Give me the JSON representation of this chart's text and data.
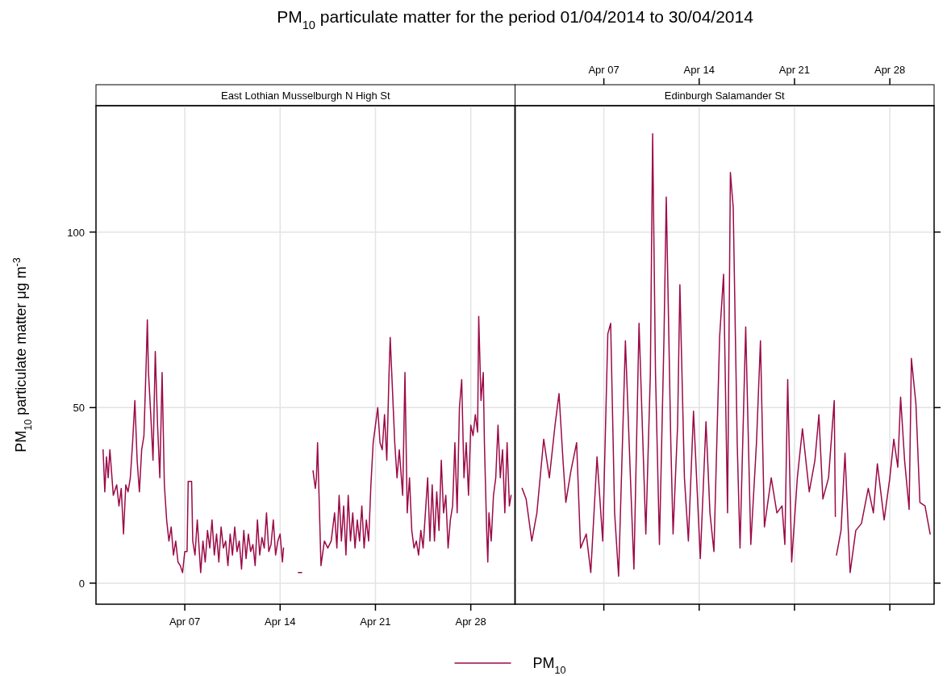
{
  "chart_data": [
    {
      "type": "line",
      "title": "PM$_{10}$ particulate matter  for the period 01/04/2014 to 30/04/2014",
      "subtitle": "East Lothian Musselburgh N High St",
      "ylabel": "PM$_{10}$ particulate matter  μg m$^{-3}$",
      "xlim": [
        "2014-03-31T11:30",
        "2014-05-01T06:00"
      ],
      "xticks": [
        {
          "value": "2014-04-07",
          "label": "Apr 07"
        },
        {
          "value": "2014-04-14",
          "label": "Apr 14"
        },
        {
          "value": "2014-04-21",
          "label": "Apr 21"
        },
        {
          "value": "2014-04-28",
          "label": "Apr 28"
        }
      ],
      "ylim": [
        -6,
        136
      ],
      "yticks": [
        0,
        50,
        100
      ],
      "grid": true,
      "legend": "bottom",
      "series": [
        {
          "name": "PM$_{10}$",
          "color": "#9b0a47",
          "x": [
            "2014-04-01T00:00",
            "2014-04-01T03:00",
            "2014-04-01T06:00",
            "2014-04-01T09:00",
            "2014-04-01T12:00",
            "2014-04-01T18:00",
            "2014-04-02T00:00",
            "2014-04-02T04:00",
            "2014-04-02T08:00",
            "2014-04-02T12:00",
            "2014-04-02T16:00",
            "2014-04-02T20:00",
            "2014-04-03T00:00",
            "2014-04-03T04:00",
            "2014-04-03T08:00",
            "2014-04-03T12:00",
            "2014-04-03T16:00",
            "2014-04-03T20:00",
            "2014-04-04T00:00",
            "2014-04-04T04:00",
            "2014-04-04T06:00",
            "2014-04-04T08:00",
            "2014-04-04T12:00",
            "2014-04-04T16:00",
            "2014-04-04T20:00",
            "2014-04-05T00:00",
            "2014-04-05T04:00",
            "2014-04-05T08:00",
            "2014-04-05T12:00",
            "2014-04-05T16:00",
            "2014-04-05T20:00",
            "2014-04-06T00:00",
            "2014-04-06T04:00",
            "2014-04-06T08:00",
            "2014-04-06T12:00",
            "2014-04-06T16:00",
            "2014-04-06T20:00",
            "2014-04-07T00:00",
            "2014-04-07T04:00",
            "2014-04-07T06:00",
            "2014-04-07T12:00",
            "2014-04-07T14:00",
            "2014-04-07T18:00",
            "2014-04-07T22:00",
            "2014-04-08T04:00",
            "2014-04-08T08:00",
            "2014-04-08T12:00",
            "2014-04-08T16:00",
            "2014-04-08T20:00",
            "2014-04-09T00:00",
            "2014-04-09T04:00",
            "2014-04-09T08:00",
            "2014-04-09T12:00",
            "2014-04-09T16:00",
            "2014-04-09T20:00",
            "2014-04-10T00:00",
            "2014-04-10T04:00",
            "2014-04-10T08:00",
            "2014-04-10T12:00",
            "2014-04-10T16:00",
            "2014-04-10T20:00",
            "2014-04-11T00:00",
            "2014-04-11T04:00",
            "2014-04-11T08:00",
            "2014-04-11T12:00",
            "2014-04-11T16:00",
            "2014-04-11T20:00",
            "2014-04-12T00:00",
            "2014-04-12T04:00",
            "2014-04-12T08:00",
            "2014-04-12T12:00",
            "2014-04-12T16:00",
            "2014-04-12T20:00",
            "2014-04-13T00:00",
            "2014-04-13T04:00",
            "2014-04-13T08:00",
            "2014-04-13T12:00",
            "2014-04-13T16:00",
            "2014-04-13T20:00",
            "2014-04-14T00:00",
            "2014-04-14T04:00",
            "2014-04-14T06:00",
            "2014-04-14T12:00",
            "2014-04-15T08:00",
            "2014-04-15T14:00",
            "2014-04-15T16:00",
            "2014-04-16T10:00",
            "2014-04-16T14:00",
            "2014-04-16T16:00",
            "2014-04-16T18:00",
            "2014-04-17T00:00",
            "2014-04-17T06:00",
            "2014-04-17T12:00",
            "2014-04-17T18:00",
            "2014-04-18T00:00",
            "2014-04-18T04:00",
            "2014-04-18T08:00",
            "2014-04-18T12:00",
            "2014-04-18T16:00",
            "2014-04-18T20:00",
            "2014-04-19T00:00",
            "2014-04-19T04:00",
            "2014-04-19T08:00",
            "2014-04-19T12:00",
            "2014-04-19T16:00",
            "2014-04-19T20:00",
            "2014-04-20T00:00",
            "2014-04-20T04:00",
            "2014-04-20T08:00",
            "2014-04-20T12:00",
            "2014-04-20T16:00",
            "2014-04-20T20:00",
            "2014-04-21T00:00",
            "2014-04-21T04:00",
            "2014-04-21T08:00",
            "2014-04-21T12:00",
            "2014-04-21T16:00",
            "2014-04-21T20:00",
            "2014-04-22T00:00",
            "2014-04-22T02:00",
            "2014-04-22T06:00",
            "2014-04-22T10:00",
            "2014-04-22T14:00",
            "2014-04-22T18:00",
            "2014-04-23T00:00",
            "2014-04-23T04:00",
            "2014-04-23T08:00",
            "2014-04-23T12:00",
            "2014-04-23T16:00",
            "2014-04-23T20:00",
            "2014-04-24T00:00",
            "2014-04-24T04:00",
            "2014-04-24T08:00",
            "2014-04-24T12:00",
            "2014-04-24T16:00",
            "2014-04-24T20:00",
            "2014-04-25T00:00",
            "2014-04-25T04:00",
            "2014-04-25T08:00",
            "2014-04-25T12:00",
            "2014-04-25T16:00",
            "2014-04-25T20:00",
            "2014-04-26T00:00",
            "2014-04-26T04:00",
            "2014-04-26T08:00",
            "2014-04-26T12:00",
            "2014-04-26T16:00",
            "2014-04-26T20:00",
            "2014-04-27T00:00",
            "2014-04-27T04:00",
            "2014-04-27T08:00",
            "2014-04-27T12:00",
            "2014-04-27T16:00",
            "2014-04-27T20:00",
            "2014-04-28T00:00",
            "2014-04-28T04:00",
            "2014-04-28T08:00",
            "2014-04-28T12:00",
            "2014-04-28T14:00",
            "2014-04-28T18:00",
            "2014-04-28T22:00",
            "2014-04-29T00:00",
            "2014-04-29T04:00",
            "2014-04-29T06:00",
            "2014-04-29T08:00",
            "2014-04-29T12:00",
            "2014-04-29T16:00",
            "2014-04-29T20:00",
            "2014-04-30T00:00",
            "2014-04-30T04:00",
            "2014-04-30T08:00",
            "2014-04-30T12:00",
            "2014-04-30T16:00",
            "2014-04-30T20:00",
            "2014-04-30T23:00"
          ],
          "values": [
            38,
            26,
            36,
            30,
            38,
            25,
            28,
            22,
            27,
            14,
            28,
            26,
            30,
            40,
            52,
            35,
            26,
            38,
            42,
            63,
            75,
            60,
            48,
            35,
            66,
            45,
            30,
            60,
            28,
            18,
            12,
            16,
            8,
            12,
            6,
            5,
            3,
            9,
            9,
            29,
            29,
            12,
            8,
            18,
            3,
            12,
            6,
            15,
            10,
            18,
            8,
            14,
            6,
            16,
            10,
            12,
            5,
            14,
            8,
            16,
            9,
            12,
            4,
            15,
            7,
            14,
            9,
            11,
            5,
            18,
            8,
            13,
            10,
            20,
            9,
            11,
            18,
            8,
            12,
            14,
            6,
            10,
            null,
            3,
            3,
            null,
            32,
            27,
            30,
            40,
            5,
            12,
            10,
            12,
            20,
            10,
            25,
            12,
            22,
            8,
            25,
            12,
            20,
            10,
            18,
            12,
            22,
            10,
            18,
            12,
            28,
            40,
            45,
            50,
            40,
            38,
            48,
            35,
            60,
            70,
            55,
            40,
            30,
            38,
            25,
            60,
            20,
            30,
            15,
            10,
            12,
            8,
            15,
            10,
            20,
            30,
            12,
            28,
            12,
            26,
            15,
            35,
            20,
            25,
            10,
            18,
            22,
            40,
            20,
            50,
            58,
            30,
            40,
            25,
            45,
            42,
            48,
            43,
            76,
            52,
            60,
            40,
            15,
            6,
            20,
            12,
            25,
            30,
            45,
            30,
            38,
            20,
            40,
            22,
            25
          ]
        }
      ]
    },
    {
      "type": "line",
      "subtitle": "Edinburgh Salamander St",
      "xlim": [
        "2014-03-31T11:30",
        "2014-05-01T06:00"
      ],
      "xticks": [
        {
          "value": "2014-04-07",
          "label": "Apr 07"
        },
        {
          "value": "2014-04-14",
          "label": "Apr 14"
        },
        {
          "value": "2014-04-21",
          "label": "Apr 21"
        },
        {
          "value": "2014-04-28",
          "label": "Apr 28"
        }
      ],
      "ylim": [
        -6,
        136
      ],
      "yticks": [
        0,
        50,
        100
      ],
      "grid": true,
      "tick_labels": "x",
      "series": [
        {
          "color": "#9b0a47",
          "x": [
            "2014-04-01T00:00",
            "2014-04-01T07:00",
            "2014-04-01T17:00",
            "2014-04-02T02:00",
            "2014-04-02T14:00",
            "2014-04-03T00:00",
            "2014-04-03T10:00",
            "2014-04-03T17:00",
            "2014-04-04T00:00",
            "2014-04-04T05:00",
            "2014-04-04T14:00",
            "2014-04-05T00:00",
            "2014-04-05T07:00",
            "2014-04-05T17:00",
            "2014-04-06T01:00",
            "2014-04-06T12:00",
            "2014-04-06T22:00",
            "2014-04-07T07:00",
            "2014-04-07T12:00",
            "2014-04-07T19:00",
            "2014-04-08T02:00",
            "2014-04-08T14:00",
            "2014-04-09T00:00",
            "2014-04-09T05:00",
            "2014-04-09T14:00",
            "2014-04-10T02:00",
            "2014-04-10T10:00",
            "2014-04-10T14:00",
            "2014-04-10T19:00",
            "2014-04-11T02:00",
            "2014-04-11T10:00",
            "2014-04-11T14:00",
            "2014-04-11T22:00",
            "2014-04-12T02:00",
            "2014-04-12T10:00",
            "2014-04-12T14:00",
            "2014-04-12T22:00",
            "2014-04-13T05:00",
            "2014-04-13T14:00",
            "2014-04-14T02:00",
            "2014-04-14T12:00",
            "2014-04-14T19:00",
            "2014-04-15T02:00",
            "2014-04-15T12:00",
            "2014-04-15T19:00",
            "2014-04-16T02:00",
            "2014-04-16T07:00",
            "2014-04-16T12:00",
            "2014-04-16T19:00",
            "2014-04-17T00:00",
            "2014-04-17T10:00",
            "2014-04-17T19:00",
            "2014-04-18T05:00",
            "2014-04-18T12:00",
            "2014-04-18T19:00",
            "2014-04-19T07:00",
            "2014-04-19T17:00",
            "2014-04-20T02:00",
            "2014-04-20T07:00",
            "2014-04-20T12:00",
            "2014-04-20T19:00",
            "2014-04-21T05:00",
            "2014-04-21T14:00",
            "2014-04-22T02:00",
            "2014-04-22T12:00",
            "2014-04-22T19:00",
            "2014-04-23T02:00",
            "2014-04-23T12:00",
            "2014-04-23T22:00",
            "2014-04-24T00:00",
            "2014-04-24T01:00",
            "2014-04-24T02:00",
            "2014-04-24T10:00",
            "2014-04-24T17:00",
            "2014-04-25T02:00",
            "2014-04-25T12:00",
            "2014-04-25T22:00",
            "2014-04-26T10:00",
            "2014-04-26T19:00",
            "2014-04-27T02:00",
            "2014-04-27T14:00",
            "2014-04-28T00:00",
            "2014-04-28T07:00",
            "2014-04-28T14:00",
            "2014-04-28T19:00",
            "2014-04-29T02:00",
            "2014-04-29T10:00",
            "2014-04-29T14:00",
            "2014-04-29T22:00",
            "2014-04-30T05:00",
            "2014-04-30T14:00",
            "2014-04-30T23:00"
          ],
          "values": [
            27,
            24,
            12,
            20,
            41,
            30,
            45,
            54,
            35,
            23,
            32,
            40,
            10,
            14,
            3,
            36,
            12,
            71,
            74,
            20,
            2,
            69,
            25,
            4,
            74,
            14,
            60,
            128,
            60,
            11,
            70,
            110,
            40,
            14,
            45,
            85,
            30,
            12,
            49,
            7,
            46,
            20,
            9,
            70,
            88,
            20,
            117,
            107,
            40,
            10,
            73,
            11,
            40,
            69,
            16,
            30,
            20,
            22,
            11,
            58,
            6,
            30,
            44,
            26,
            35,
            48,
            24,
            30,
            52,
            19,
            null,
            8,
            15,
            37,
            3,
            15,
            17,
            27,
            20,
            34,
            18,
            30,
            41,
            33,
            53,
            35,
            21,
            64,
            51,
            23,
            22,
            14
          ]
        }
      ]
    }
  ]
}
